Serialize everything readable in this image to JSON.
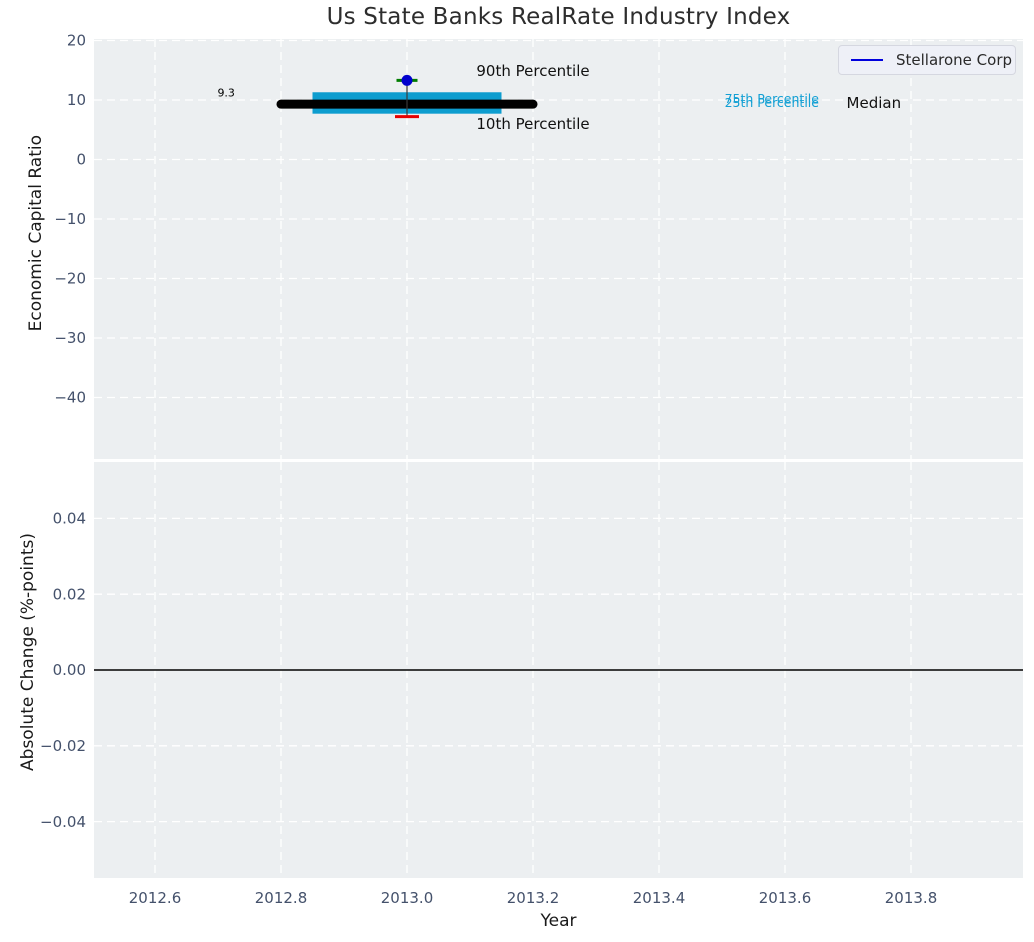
{
  "title": "Us State Banks RealRate Industry Index",
  "legend": {
    "label": "Stellarone Corp"
  },
  "colors": {
    "panel_bg": "#eceff1",
    "grid": "#ffffff",
    "tick_label": "#44516b",
    "band": "#0d9dcf",
    "median": "#000000",
    "company_marker": "#0000cd",
    "cap_high": "#007d00",
    "cap_low": "#e60000",
    "stem": "#3a3a3a",
    "legend_line": "#0000dd",
    "cyan_text": "#14a0d4",
    "zero_line": "#000000"
  },
  "chart_data": [
    {
      "type": "scatter",
      "title": "Us State Banks RealRate Industry Index",
      "ylabel": "Economic Capital Ratio",
      "xlabel": "",
      "xlim": [
        2012.5,
        2013.98
      ],
      "ylim": [
        -50.5,
        20.3
      ],
      "grid": true,
      "legend": {
        "entries": [
          "Stellarone Corp"
        ],
        "position": "upper right"
      },
      "xticks": [
        {
          "v": 2012.6,
          "label": "2012.6"
        },
        {
          "v": 2012.8,
          "label": "2012.8"
        },
        {
          "v": 2013.0,
          "label": "2013.0"
        },
        {
          "v": 2013.2,
          "label": "2013.2"
        },
        {
          "v": 2013.4,
          "label": "2013.4"
        },
        {
          "v": 2013.6,
          "label": "2013.6"
        },
        {
          "v": 2013.8,
          "label": "2013.8"
        }
      ],
      "yticks": [
        {
          "v": 20,
          "label": "20"
        },
        {
          "v": 10,
          "label": "10"
        },
        {
          "v": 0,
          "label": "0"
        },
        {
          "v": -10,
          "label": "−10"
        },
        {
          "v": -20,
          "label": "−20"
        },
        {
          "v": -30,
          "label": "−30"
        },
        {
          "v": -40,
          "label": "−40"
        }
      ],
      "summary": {
        "x": 2013.0,
        "company_name": "Stellarone Corp",
        "company_value": 13.3,
        "p90": 13.3,
        "p75": 11.3,
        "median": 9.3,
        "p25": 7.7,
        "p10": 7.2,
        "median_span": [
          2012.8,
          2013.2
        ],
        "band_span": [
          2012.85,
          2013.15
        ]
      },
      "annotations": [
        {
          "text": "9.3",
          "x": 2012.713,
          "y": 11.2,
          "color": "#000000",
          "size": 11
        },
        {
          "text": "90th Percentile",
          "x": 2013.2,
          "y": 14.9,
          "color": "#111111",
          "size": 15
        },
        {
          "text": "10th Percentile",
          "x": 2013.2,
          "y": 6.0,
          "color": "#111111",
          "size": 15
        },
        {
          "text": "75th Percentile",
          "x": 2013.579,
          "y": 10.25,
          "color": "#14a0d4",
          "size": 12.5
        },
        {
          "text": "25th Percentile",
          "x": 2013.579,
          "y": 9.55,
          "color": "#14a0d4",
          "size": 12.5
        },
        {
          "text": "Median",
          "x": 2013.741,
          "y": 9.5,
          "color": "#111111",
          "size": 15
        }
      ]
    },
    {
      "type": "line",
      "title": "",
      "ylabel": "Absolute Change (%-points)",
      "xlabel": "Year",
      "xlim": [
        2012.5,
        2013.98
      ],
      "ylim": [
        -0.0549,
        0.0549
      ],
      "grid": true,
      "xticks": [
        {
          "v": 2012.6,
          "label": "2012.6"
        },
        {
          "v": 2012.8,
          "label": "2012.8"
        },
        {
          "v": 2013.0,
          "label": "2013.0"
        },
        {
          "v": 2013.2,
          "label": "2013.2"
        },
        {
          "v": 2013.4,
          "label": "2013.4"
        },
        {
          "v": 2013.6,
          "label": "2013.6"
        },
        {
          "v": 2013.8,
          "label": "2013.8"
        }
      ],
      "yticks": [
        {
          "v": 0.04,
          "label": "0.04"
        },
        {
          "v": 0.02,
          "label": "0.02"
        },
        {
          "v": 0.0,
          "label": "0.00"
        },
        {
          "v": -0.02,
          "label": "−0.02"
        },
        {
          "v": -0.04,
          "label": "−0.04"
        }
      ],
      "zero_line": 0.0,
      "series": []
    }
  ]
}
